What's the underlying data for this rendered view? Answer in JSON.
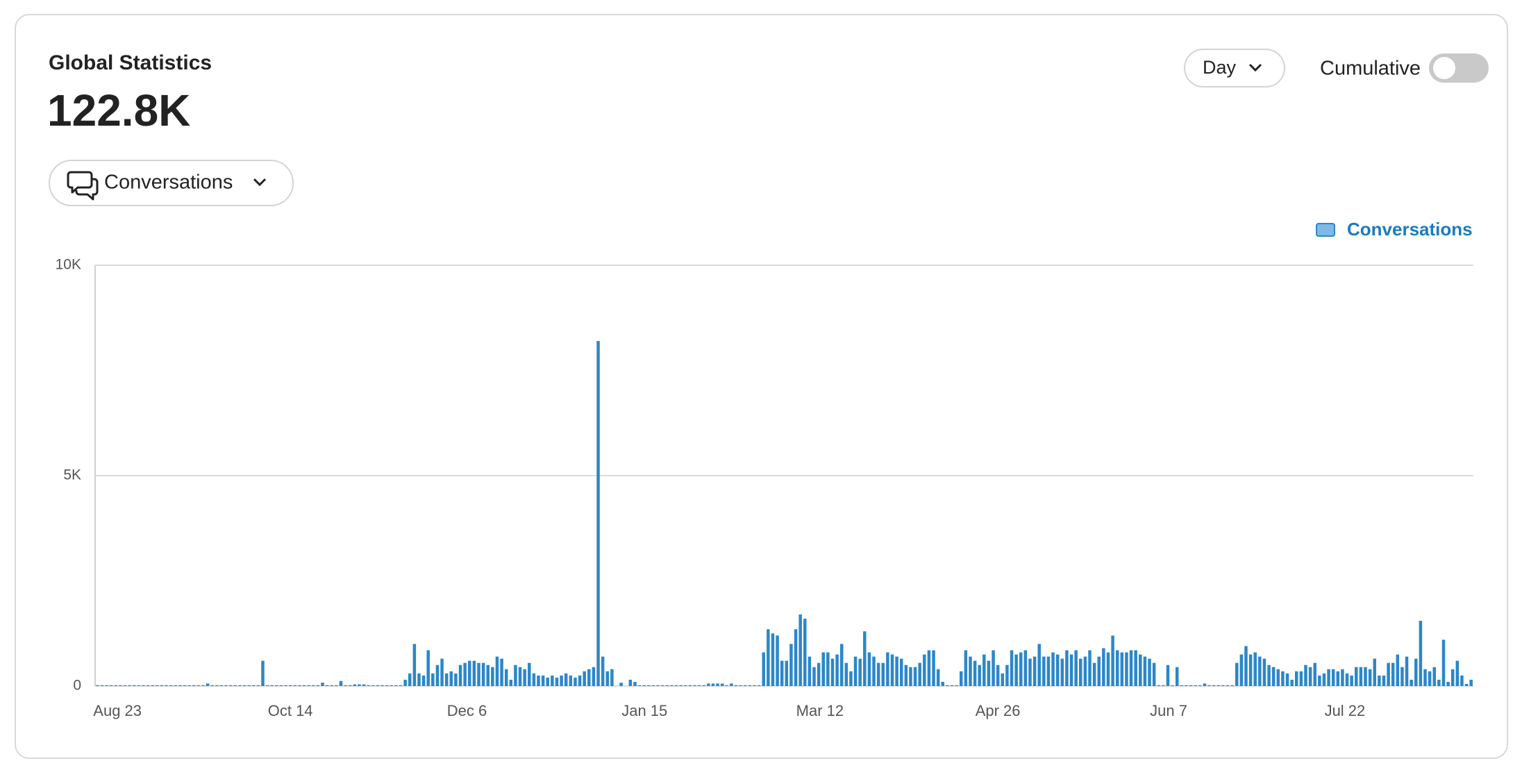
{
  "header": {
    "title": "Global Statistics",
    "total": "122.8K"
  },
  "controls": {
    "metric": "Conversations",
    "period": "Day",
    "cumulative": "Cumulative"
  },
  "chart_data": {
    "type": "bar",
    "grid": true,
    "legend": "top-right",
    "ylim": [
      0,
      10000
    ],
    "yticks": [
      0,
      {
        "value": 5000,
        "label": "5K"
      },
      {
        "value": 10000,
        "label": "10K"
      }
    ],
    "categories": [
      "Aug 23",
      null,
      null,
      null,
      null,
      null,
      null,
      null,
      null,
      null,
      null,
      null,
      null,
      null,
      null,
      null,
      null,
      null,
      null,
      null,
      null,
      null,
      null,
      null,
      null,
      null,
      null,
      null,
      null,
      null,
      null,
      null,
      null,
      null,
      null,
      null,
      null,
      null,
      "Oct 14",
      null,
      null,
      null,
      null,
      null,
      null,
      null,
      null,
      null,
      null,
      null,
      null,
      null,
      null,
      null,
      null,
      null,
      null,
      null,
      null,
      null,
      null,
      null,
      null,
      null,
      null,
      null,
      null,
      null,
      null,
      null,
      null,
      null,
      null,
      null,
      null,
      null,
      null,
      "Dec 6",
      null,
      null,
      null,
      null,
      null,
      null,
      null,
      null,
      null,
      null,
      null,
      null,
      null,
      null,
      null,
      null,
      null,
      null,
      null,
      null,
      null,
      null,
      null,
      null,
      null,
      null,
      null,
      null,
      null,
      null,
      null,
      null,
      null,
      null,
      null,
      null,
      null,
      "Jan 15",
      null,
      null,
      null,
      null,
      null,
      null,
      null,
      null,
      null,
      null,
      null,
      null,
      null,
      null,
      null,
      null,
      null,
      null,
      null,
      null,
      null,
      null,
      null,
      null,
      null,
      null,
      null,
      null,
      null,
      null,
      null,
      null,
      null,
      null,
      null,
      null,
      null,
      "Mar 12",
      null,
      null,
      null,
      null,
      null,
      null,
      null,
      null,
      null,
      null,
      null,
      null,
      null,
      null,
      null,
      null,
      null,
      null,
      null,
      null,
      null,
      null,
      null,
      null,
      null,
      null,
      null,
      null,
      null,
      null,
      null,
      null,
      null,
      null,
      null,
      null,
      null,
      null,
      "Apr 26",
      null,
      null,
      null,
      null,
      null,
      null,
      null,
      null,
      null,
      null,
      null,
      null,
      null,
      null,
      null,
      null,
      null,
      null,
      null,
      null,
      null,
      null,
      null,
      null,
      null,
      null,
      null,
      null,
      null,
      null,
      null,
      null,
      null,
      null,
      null,
      null,
      null,
      "Jun 7",
      null,
      null,
      null,
      null,
      null,
      null,
      null,
      null,
      null,
      null,
      null,
      null,
      null,
      null,
      null,
      null,
      null,
      null,
      null,
      null,
      null,
      null,
      null,
      null,
      null,
      null,
      null,
      null,
      null,
      null,
      null,
      null,
      null,
      null,
      null,
      null,
      null,
      "Jul 22",
      null,
      null,
      null,
      null,
      null,
      null,
      null,
      null,
      null,
      null,
      null,
      null,
      null,
      null,
      null,
      null,
      null,
      null,
      null,
      null,
      null,
      null,
      null,
      null,
      null,
      null,
      null,
      null,
      null,
      null,
      null
    ],
    "series": [
      {
        "name": "Conversations",
        "color": "#2b87c8",
        "values": [
          20,
          20,
          20,
          20,
          20,
          20,
          20,
          20,
          20,
          20,
          20,
          20,
          20,
          20,
          20,
          20,
          20,
          20,
          20,
          20,
          20,
          20,
          20,
          20,
          60,
          20,
          20,
          20,
          20,
          20,
          20,
          20,
          20,
          20,
          20,
          20,
          600,
          20,
          20,
          20,
          20,
          20,
          20,
          20,
          20,
          20,
          20,
          20,
          20,
          80,
          20,
          20,
          20,
          120,
          20,
          20,
          40,
          40,
          40,
          20,
          20,
          20,
          20,
          20,
          20,
          20,
          20,
          150,
          300,
          1000,
          300,
          250,
          850,
          300,
          500,
          650,
          300,
          350,
          300,
          500,
          550,
          600,
          600,
          550,
          550,
          500,
          450,
          700,
          650,
          400,
          150,
          500,
          450,
          400,
          550,
          300,
          250,
          250,
          200,
          250,
          200,
          250,
          300,
          250,
          200,
          250,
          350,
          400,
          450,
          8200,
          700,
          350,
          400,
          0,
          80,
          0,
          150,
          100,
          20,
          20,
          20,
          20,
          20,
          20,
          20,
          20,
          20,
          20,
          20,
          20,
          20,
          20,
          20,
          60,
          60,
          60,
          60,
          20,
          60,
          20,
          20,
          20,
          20,
          20,
          20,
          800,
          1350,
          1250,
          1200,
          600,
          600,
          1000,
          1350,
          1700,
          1600,
          700,
          450,
          550,
          800,
          800,
          650,
          750,
          1000,
          550,
          350,
          700,
          650,
          1300,
          800,
          700,
          550,
          550,
          800,
          750,
          700,
          650,
          500,
          450,
          450,
          550,
          750,
          850,
          850,
          400,
          100,
          20,
          20,
          20,
          350,
          850,
          700,
          600,
          500,
          750,
          600,
          850,
          500,
          300,
          500,
          850,
          750,
          800,
          850,
          650,
          700,
          1000,
          700,
          700,
          800,
          750,
          650,
          850,
          750,
          850,
          650,
          700,
          850,
          550,
          700,
          900,
          800,
          1200,
          850,
          800,
          800,
          850,
          850,
          750,
          700,
          650,
          550,
          20,
          20,
          500,
          20,
          450,
          20,
          20,
          20,
          20,
          20,
          60,
          20,
          20,
          20,
          20,
          20,
          20,
          550,
          750,
          950,
          750,
          800,
          700,
          650,
          500,
          450,
          400,
          350,
          300,
          150,
          350,
          350,
          500,
          450,
          550,
          250,
          300,
          400,
          400,
          350,
          400,
          300,
          250,
          450,
          450,
          450,
          400,
          650,
          250,
          250,
          550,
          550,
          750,
          450,
          700,
          150,
          650,
          1550,
          400,
          350,
          450,
          150,
          1100,
          100,
          400,
          600,
          250,
          50,
          150
        ]
      }
    ]
  }
}
